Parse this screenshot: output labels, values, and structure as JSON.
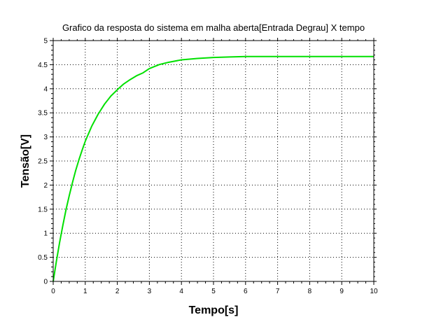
{
  "chart_data": {
    "type": "line",
    "title": "Grafico da resposta do sistema em malha aberta[Entrada Degrau] X tempo",
    "xlabel": "Tempo[s]",
    "ylabel": "Tensão[V]",
    "xlim": [
      0,
      10
    ],
    "ylim": [
      0,
      5
    ],
    "grid": true,
    "x_ticks": [
      "0",
      "1",
      "2",
      "3",
      "4",
      "5",
      "6",
      "7",
      "8",
      "9",
      "10"
    ],
    "y_ticks": [
      "0",
      "0.5",
      "1",
      "1.5",
      "2",
      "2.5",
      "3",
      "3.5",
      "4",
      "4.5",
      "5"
    ],
    "series": [
      {
        "color": "#00e000",
        "x": [
          0,
          0.1,
          0.2,
          0.3,
          0.4,
          0.5,
          0.6,
          0.7,
          0.8,
          0.9,
          1.0,
          1.2,
          1.4,
          1.6,
          1.8,
          2.0,
          2.2,
          2.4,
          2.6,
          2.8,
          3.0,
          3.3,
          3.6,
          4.0,
          4.5,
          5.0,
          5.5,
          6.0,
          6.5,
          7.0,
          8.0,
          9.0,
          10.0
        ],
        "y": [
          0,
          0.42,
          0.81,
          1.16,
          1.49,
          1.78,
          2.05,
          2.3,
          2.52,
          2.72,
          2.91,
          3.22,
          3.47,
          3.68,
          3.85,
          3.98,
          4.1,
          4.19,
          4.27,
          4.33,
          4.42,
          4.5,
          4.55,
          4.6,
          4.63,
          4.65,
          4.66,
          4.67,
          4.67,
          4.67,
          4.67,
          4.67,
          4.67
        ]
      }
    ]
  }
}
